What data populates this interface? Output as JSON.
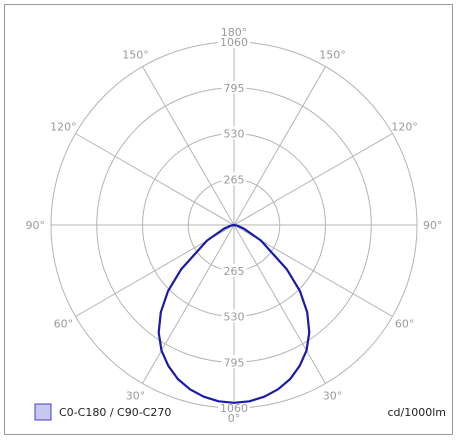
{
  "chart_data": {
    "type": "polar",
    "units": "cd/1000lm",
    "radial_ticks": [
      "265",
      "530",
      "795",
      "1060"
    ],
    "radial_max": 1060,
    "angle_labels": {
      "left": [
        "0°",
        "30°",
        "60°",
        "90°",
        "120°",
        "150°",
        "180°"
      ],
      "right": [
        "30°",
        "60°",
        "90°",
        "120°",
        "150°"
      ]
    },
    "series": [
      {
        "name": "C0-C180 / C90-C270",
        "color": "#1a1aa8",
        "angles_deg": [
          0,
          5,
          10,
          15,
          20,
          25,
          30,
          35,
          40,
          45,
          50,
          60,
          70,
          80,
          90
        ],
        "intensity": [
          1030,
          1025,
          1010,
          985,
          950,
          900,
          840,
          760,
          660,
          540,
          400,
          180,
          60,
          15,
          0
        ]
      }
    ]
  },
  "legend": {
    "label": "C0-C180 / C90-C270",
    "swatch_color": "#c8c8f0",
    "swatch_border": "#4040c0"
  }
}
